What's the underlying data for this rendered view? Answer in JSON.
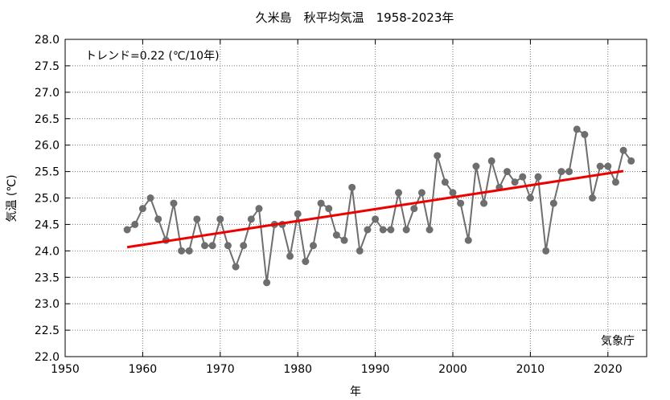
{
  "chart_data": {
    "type": "line",
    "title": "久米島　秋平均気温　1958-2023年",
    "xlabel": "年",
    "ylabel": "気温 (℃)",
    "xlim": [
      1950,
      2025
    ],
    "ylim": [
      22.0,
      28.0
    ],
    "x_ticks": [
      "1950",
      "1960",
      "1970",
      "1980",
      "1990",
      "2000",
      "2010",
      "2020"
    ],
    "y_ticks": [
      "22.0",
      "22.5",
      "23.0",
      "23.5",
      "24.0",
      "24.5",
      "25.0",
      "25.5",
      "26.0",
      "26.5",
      "27.0",
      "27.5",
      "28.0"
    ],
    "grid": true,
    "annotation": "トレンド=0.22 (℃/10年)",
    "source": "気象庁",
    "colors": {
      "series": "#6e6e6e",
      "trend": "#ee0000"
    },
    "series": [
      {
        "x": [
          1958,
          1959,
          1960,
          1961,
          1962,
          1963,
          1964,
          1965,
          1966,
          1967,
          1968,
          1969,
          1970,
          1971,
          1972,
          1973,
          1974,
          1975,
          1976,
          1977,
          1978,
          1979,
          1980,
          1981,
          1982,
          1983,
          1984,
          1985,
          1986,
          1987,
          1988,
          1989,
          1990,
          1991,
          1992,
          1993,
          1994,
          1995,
          1996,
          1997,
          1998,
          1999,
          2000,
          2001,
          2002,
          2003,
          2004,
          2005,
          2006,
          2007,
          2008,
          2009,
          2010,
          2011,
          2012,
          2013,
          2014,
          2015,
          2016,
          2017,
          2018,
          2019,
          2020,
          2021,
          2022,
          2023
        ],
        "values": [
          24.4,
          24.5,
          24.8,
          25.0,
          24.6,
          24.2,
          24.9,
          24.0,
          24.0,
          24.6,
          24.1,
          24.1,
          24.6,
          24.1,
          23.7,
          24.1,
          24.6,
          24.8,
          23.4,
          24.5,
          24.5,
          23.9,
          24.7,
          23.8,
          24.1,
          24.9,
          24.8,
          24.3,
          24.2,
          25.2,
          24.0,
          24.4,
          24.6,
          24.4,
          24.4,
          25.1,
          24.4,
          24.8,
          25.1,
          24.4,
          25.8,
          25.3,
          25.1,
          24.9,
          24.2,
          25.6,
          24.9,
          25.7,
          25.2,
          25.5,
          25.3,
          25.4,
          25.0,
          25.4,
          24.0,
          24.9,
          25.5,
          25.5,
          26.3,
          26.2,
          25.0,
          25.6,
          25.6,
          25.3,
          25.9,
          25.7
        ]
      }
    ],
    "trend": {
      "x": [
        1958,
        2022
      ],
      "values": [
        24.07,
        25.51
      ]
    }
  }
}
